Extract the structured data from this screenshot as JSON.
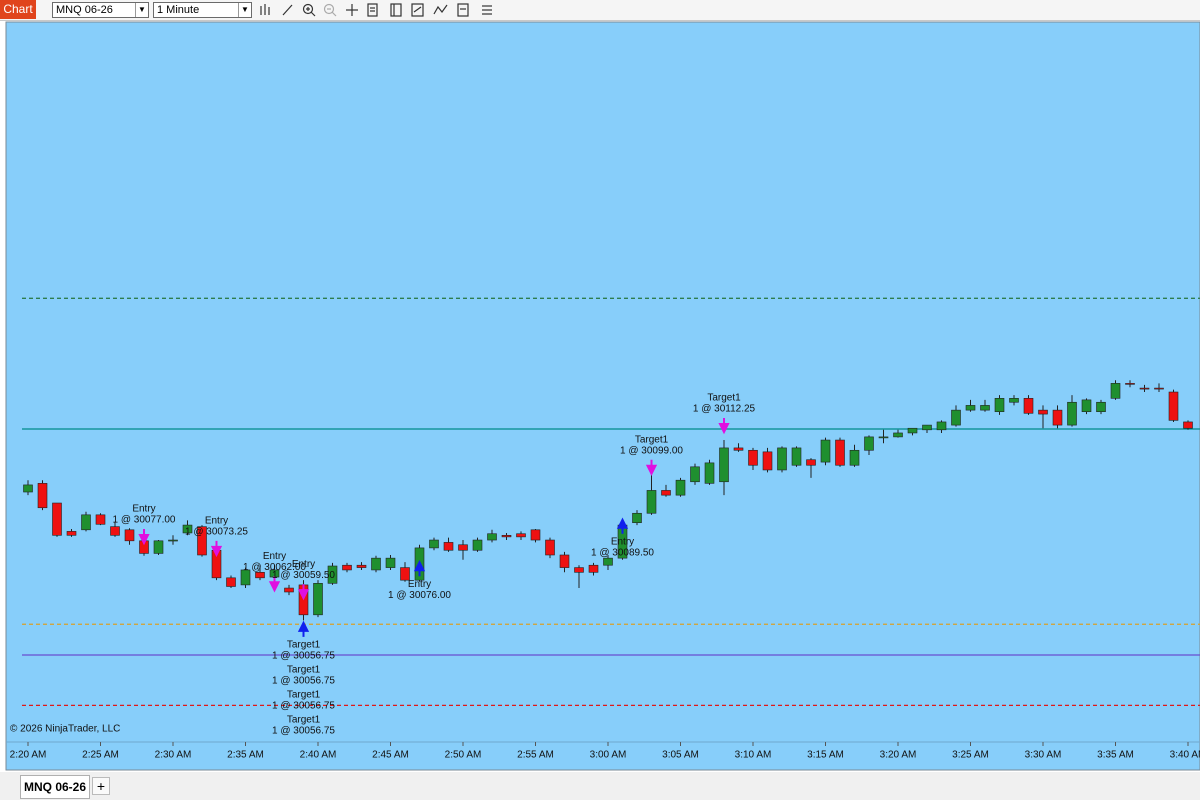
{
  "toolbar": {
    "button": "Chart",
    "instrument": "MNQ 06-26",
    "interval": "1 Minute"
  },
  "tabs": [
    "MNQ 06-26"
  ],
  "copyright": "© 2026 NinjaTrader, LLC",
  "chart_data": {
    "type": "candlestick",
    "categories": [
      "2:20 AM",
      null,
      null,
      null,
      null,
      "2:25 AM",
      null,
      null,
      null,
      null,
      "2:30 AM",
      null,
      null,
      null,
      null,
      "2:35 AM",
      null,
      null,
      null,
      null,
      "2:40 AM",
      null,
      null,
      null,
      null,
      "2:45 AM",
      null,
      null,
      null,
      null,
      "2:50 AM",
      null,
      null,
      null,
      null,
      "2:55 AM",
      null,
      null,
      null,
      null,
      "3:00 AM",
      null,
      null,
      null,
      null,
      "3:05 AM",
      null,
      null,
      null,
      null,
      "3:10 AM",
      null,
      null,
      null,
      null,
      "3:15 AM",
      null,
      null,
      null,
      null,
      "3:20 AM",
      null,
      null,
      null,
      null,
      "3:25 AM",
      null,
      null,
      null,
      null,
      "3:30 AM",
      null,
      null,
      null,
      null,
      "3:35 AM",
      null,
      null,
      null,
      null,
      "3:40 AM"
    ],
    "open": [
      30095.75,
      30098.5,
      30092.25,
      30083.25,
      30083.75,
      30088.5,
      30084.75,
      30083.75,
      30080.25,
      30076.25,
      30080.5,
      30082.75,
      30084.75,
      30077.25,
      30068.5,
      30066.25,
      30070.25,
      30068.75,
      30065.25,
      30066.25,
      30056.75,
      30066.75,
      30072.5,
      30072.5,
      30071,
      30071.75,
      30071.75,
      30067.75,
      30078,
      30079.75,
      30079,
      30077.25,
      30080.5,
      30082,
      30082.5,
      30083.75,
      30080.5,
      30075.75,
      30071.75,
      30072.5,
      30072.5,
      30074.75,
      30086,
      30089,
      30096.25,
      30094.75,
      30099,
      30098.5,
      30099,
      30109.75,
      30109,
      30108.5,
      30102.75,
      30104.25,
      30106,
      30105.25,
      30112.25,
      30104.25,
      30109,
      30113.25,
      30113.25,
      30114.5,
      30115.5,
      30115.5,
      30117,
      30121.75,
      30121.75,
      30121.25,
      30124.25,
      30125.5,
      30121.75,
      30121.75,
      30117,
      30121.25,
      30121.25,
      30125.5,
      30130.25,
      30128.75,
      30128.75,
      30127.5,
      30118
    ],
    "high": [
      30099.5,
      30099.5,
      30092.25,
      30084,
      30089.5,
      30089,
      30086.25,
      30084.25,
      30081.5,
      30080.5,
      30082,
      30086.75,
      30085.25,
      30079,
      30069.25,
      30071.75,
      30072.5,
      30072.5,
      30066.25,
      30067.75,
      30067.75,
      30073.25,
      30073.25,
      30073.5,
      30075.5,
      30075.75,
      30073.5,
      30079,
      30081.25,
      30081.25,
      30080.5,
      30081.25,
      30083.75,
      30082.75,
      30083.25,
      30084,
      30081.25,
      30076.75,
      30072.5,
      30073.25,
      30075.75,
      30086.25,
      30090,
      30101.25,
      30098,
      30100.25,
      30104.75,
      30106,
      30112.25,
      30111.25,
      30109.75,
      30109.75,
      30110.25,
      30110.25,
      30106.5,
      30113,
      30113,
      30110.75,
      30113.75,
      30115.5,
      30115.5,
      30116,
      30117,
      30118.5,
      30123.25,
      30125,
      30125,
      30126.5,
      30126.5,
      30126.5,
      30123.25,
      30123.25,
      30126.5,
      30125.5,
      30125,
      30131.25,
      30131.25,
      30129.75,
      30130.25,
      30128.25,
      30118.5
    ],
    "low": [
      30094.75,
      30090,
      30081.5,
      30081.5,
      30083.25,
      30085.25,
      30081.5,
      30079,
      30075.5,
      30075.75,
      30079,
      30082,
      30075.25,
      30067.75,
      30065.25,
      30065.25,
      30067.75,
      30067.75,
      30063,
      30055,
      30056,
      30066.25,
      30070.25,
      30071,
      30070.25,
      30071,
      30067.25,
      30067.25,
      30077.25,
      30076.75,
      30074.25,
      30076.75,
      30079.75,
      30080.5,
      30080.5,
      30079.75,
      30074.75,
      30070.25,
      30065.25,
      30069.25,
      30071,
      30074.25,
      30085.25,
      30088.5,
      30094.25,
      30094.25,
      30098,
      30098,
      30094.75,
      30108.5,
      30102.75,
      30102,
      30102,
      30103.75,
      30100.25,
      30104.25,
      30103.75,
      30103.75,
      30107.5,
      30111.25,
      30113,
      30113.75,
      30114.5,
      30114.5,
      30116.5,
      30121.25,
      30121.25,
      30120.25,
      30123.25,
      30120.25,
      30116,
      30116,
      30116.5,
      30120.5,
      30120.5,
      30125,
      30129,
      30127.5,
      30127.5,
      30118,
      30115.5
    ],
    "close": [
      30098,
      30090.75,
      30082,
      30082,
      30088.5,
      30085.5,
      30082,
      30080.25,
      30076.25,
      30080.25,
      30080.5,
      30085.25,
      30075.75,
      30068.5,
      30065.75,
      30071,
      30068.5,
      30071,
      30064,
      30056.75,
      30066.75,
      30072.25,
      30071,
      30071.75,
      30074.75,
      30074.75,
      30067.75,
      30078,
      30080.5,
      30077.25,
      30077.25,
      30080.5,
      30082.5,
      30081.5,
      30081.5,
      30080.5,
      30075.75,
      30071.75,
      30070.25,
      30070.25,
      30074.75,
      30085.25,
      30089,
      30096.25,
      30094.75,
      30099.5,
      30103.75,
      30105,
      30109.75,
      30109,
      30104.25,
      30102.75,
      30109.75,
      30109.75,
      30104.25,
      30112.25,
      30104.25,
      30109,
      30113.25,
      30113.25,
      30114.5,
      30116,
      30117,
      30118,
      30121.75,
      30123.25,
      30123.25,
      30125.5,
      30125.5,
      30120.75,
      30120.5,
      30117,
      30124.25,
      30125,
      30124.25,
      30130.25,
      30130,
      30128.5,
      30128.5,
      30118.5,
      30116
    ],
    "up_color": "#1f8f2f",
    "down_color": "#ee1111",
    "ylim": [
      30017,
      30245
    ],
    "levels": [
      {
        "price": 30157.25,
        "color": "#2e7d4f",
        "style": "dashed"
      },
      {
        "price": 30115.75,
        "color": "#008b8b",
        "style": "solid"
      },
      {
        "price": 30053.75,
        "color": "#d9a028",
        "style": "dashed"
      },
      {
        "price": 30044,
        "color": "#6a4fd0",
        "style": "solid"
      },
      {
        "price": 30028,
        "color": "#e01818",
        "style": "dashed"
      }
    ],
    "action_colors": {
      "buy": "#1020ee",
      "sell": "#e010e0"
    },
    "executions": [
      {
        "label": "Entry",
        "text": "1 @ 30077.00",
        "price": 30077,
        "index": 8,
        "action": "sell"
      },
      {
        "label": "Entry",
        "text": "1 @ 30073.25",
        "price": 30073.25,
        "index": 13,
        "action": "sell"
      },
      {
        "label": "Entry",
        "text": "1 @ 30062.00",
        "price": 30062,
        "index": 17,
        "action": "sell"
      },
      {
        "label": "Entry",
        "text": "1 @ 30059.50",
        "price": 30059.5,
        "index": 19,
        "action": "sell"
      },
      {
        "label": "Entry",
        "text": "1 @ 30076.00",
        "price": 30076,
        "index": 27,
        "action": "buy"
      },
      {
        "label": "Entry",
        "text": "1 @ 30089.50",
        "price": 30089.5,
        "index": 41,
        "action": "buy"
      },
      {
        "label": "Target1",
        "text": "1 @ 30099.00",
        "price": 30099,
        "index": 43,
        "action": "sell"
      },
      {
        "label": "Target1",
        "text": "1 @ 30112.25",
        "price": 30112.25,
        "index": 48,
        "action": "sell"
      },
      {
        "label": "Target1",
        "text": "1 @ 30056.75",
        "price": 30056.75,
        "index": 19,
        "action": "buy"
      },
      {
        "label": "Target1",
        "text": "1 @ 30056.75",
        "price": 30056.75,
        "index": 19,
        "action": "buy"
      },
      {
        "label": "Target1",
        "text": "1 @ 30056.75",
        "price": 30056.75,
        "index": 19,
        "action": "buy"
      },
      {
        "label": "Target1",
        "text": "1 @ 30056.75",
        "price": 30056.75,
        "index": 19,
        "action": "buy"
      }
    ]
  }
}
